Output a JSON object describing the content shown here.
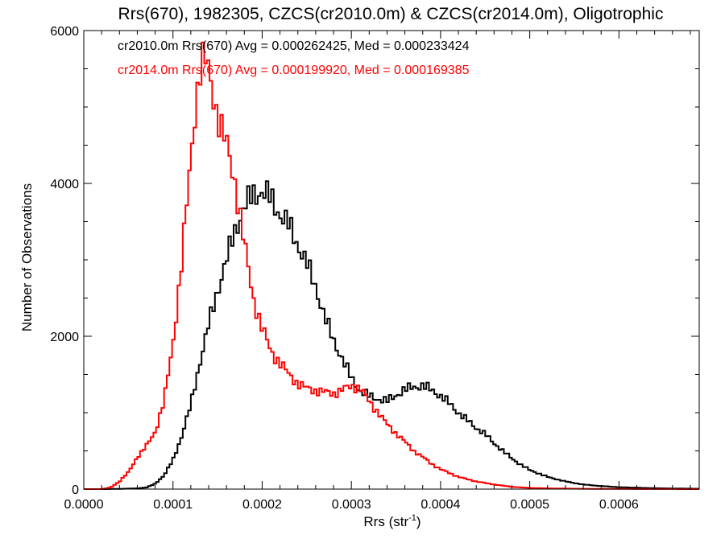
{
  "chart_data": {
    "type": "line",
    "title": "Rrs(670), 1982305, CZCS(cr2010.0m) & CZCS(cr2014.0m), Oligotrophic",
    "xlabel": {
      "base": "Rrs (str",
      "sup": "-1",
      "close": ")"
    },
    "ylabel": "Number of Observations",
    "xlim": [
      0.0,
      0.00069
    ],
    "ylim": [
      0,
      6000
    ],
    "x_ticks": [
      0.0,
      0.0001,
      0.0002,
      0.0003,
      0.0004,
      0.0005,
      0.0006
    ],
    "x_tick_labels": [
      "0.0000",
      "0.0001",
      "0.0002",
      "0.0003",
      "0.0004",
      "0.0005",
      "0.0006"
    ],
    "y_ticks": [
      0,
      2000,
      4000,
      6000
    ],
    "y_tick_labels": [
      "0",
      "2000",
      "4000",
      "6000"
    ],
    "grid": false,
    "annotations": [
      {
        "text": "cr2010.0m Rrs(670) Avg = 0.000262425, Med = 0.000233424",
        "color": "#000000"
      },
      {
        "text": "cr2014.0m Rrs(670) Avg = 0.000199920, Med = 0.000169385",
        "color": "#ff0000"
      }
    ],
    "series": [
      {
        "color": "#000000",
        "style": "step",
        "points": [
          [
            0.0,
            0
          ],
          [
            2e-05,
            0
          ],
          [
            4e-05,
            3
          ],
          [
            6e-05,
            10
          ],
          [
            7e-05,
            20
          ],
          [
            8e-05,
            70
          ],
          [
            9e-05,
            180
          ],
          [
            0.0001,
            380
          ],
          [
            0.00011,
            700
          ],
          [
            0.00012,
            1100
          ],
          [
            0.00013,
            1650
          ],
          [
            0.00014,
            2150
          ],
          [
            0.00015,
            2600
          ],
          [
            0.00016,
            3000
          ],
          [
            0.00017,
            3400
          ],
          [
            0.00018,
            3700
          ],
          [
            0.00019,
            3850
          ],
          [
            0.0002,
            3900
          ],
          [
            0.00021,
            3800
          ],
          [
            0.00022,
            3600
          ],
          [
            0.00023,
            3450
          ],
          [
            0.00024,
            3200
          ],
          [
            0.00025,
            2950
          ],
          [
            0.00026,
            2650
          ],
          [
            0.00027,
            2250
          ],
          [
            0.00028,
            1950
          ],
          [
            0.00029,
            1700
          ],
          [
            0.0003,
            1450
          ],
          [
            0.00031,
            1280
          ],
          [
            0.00032,
            1220
          ],
          [
            0.00033,
            1180
          ],
          [
            0.00034,
            1150
          ],
          [
            0.00035,
            1230
          ],
          [
            0.00036,
            1300
          ],
          [
            0.00037,
            1340
          ],
          [
            0.00038,
            1350
          ],
          [
            0.00039,
            1300
          ],
          [
            0.0004,
            1220
          ],
          [
            0.00041,
            1120
          ],
          [
            0.00042,
            1000
          ],
          [
            0.00043,
            900
          ],
          [
            0.00044,
            800
          ],
          [
            0.00045,
            720
          ],
          [
            0.00046,
            600
          ],
          [
            0.00047,
            500
          ],
          [
            0.00048,
            400
          ],
          [
            0.00049,
            320
          ],
          [
            0.0005,
            250
          ],
          [
            0.00052,
            160
          ],
          [
            0.00054,
            100
          ],
          [
            0.00056,
            60
          ],
          [
            0.00058,
            40
          ],
          [
            0.0006,
            25
          ],
          [
            0.00063,
            15
          ],
          [
            0.00066,
            8
          ],
          [
            0.00069,
            5
          ]
        ]
      },
      {
        "color": "#ff0000",
        "style": "step",
        "points": [
          [
            0.0,
            0
          ],
          [
            2e-05,
            0
          ],
          [
            3e-05,
            20
          ],
          [
            4e-05,
            100
          ],
          [
            5e-05,
            220
          ],
          [
            6e-05,
            420
          ],
          [
            7e-05,
            560
          ],
          [
            8e-05,
            750
          ],
          [
            9e-05,
            1150
          ],
          [
            0.0001,
            1900
          ],
          [
            0.00011,
            3000
          ],
          [
            0.00012,
            4300
          ],
          [
            0.000125,
            5000
          ],
          [
            0.00013,
            5500
          ],
          [
            0.000135,
            5650
          ],
          [
            0.00014,
            5450
          ],
          [
            0.00015,
            4900
          ],
          [
            0.00016,
            4500
          ],
          [
            0.00017,
            4000
          ],
          [
            0.00018,
            3200
          ],
          [
            0.00019,
            2500
          ],
          [
            0.0002,
            2100
          ],
          [
            0.00021,
            1800
          ],
          [
            0.00022,
            1650
          ],
          [
            0.00023,
            1500
          ],
          [
            0.00024,
            1380
          ],
          [
            0.00025,
            1320
          ],
          [
            0.00026,
            1290
          ],
          [
            0.00027,
            1270
          ],
          [
            0.00028,
            1250
          ],
          [
            0.00029,
            1300
          ],
          [
            0.0003,
            1350
          ],
          [
            0.00031,
            1320
          ],
          [
            0.00032,
            1150
          ],
          [
            0.00033,
            1000
          ],
          [
            0.00034,
            850
          ],
          [
            0.00035,
            730
          ],
          [
            0.00036,
            620
          ],
          [
            0.00037,
            500
          ],
          [
            0.00038,
            420
          ],
          [
            0.00039,
            330
          ],
          [
            0.0004,
            260
          ],
          [
            0.00042,
            160
          ],
          [
            0.00044,
            100
          ],
          [
            0.00046,
            60
          ],
          [
            0.00048,
            30
          ],
          [
            0.0005,
            15
          ],
          [
            0.00053,
            8
          ],
          [
            0.00056,
            4
          ],
          [
            0.0006,
            2
          ],
          [
            0.00069,
            0
          ]
        ]
      }
    ]
  }
}
